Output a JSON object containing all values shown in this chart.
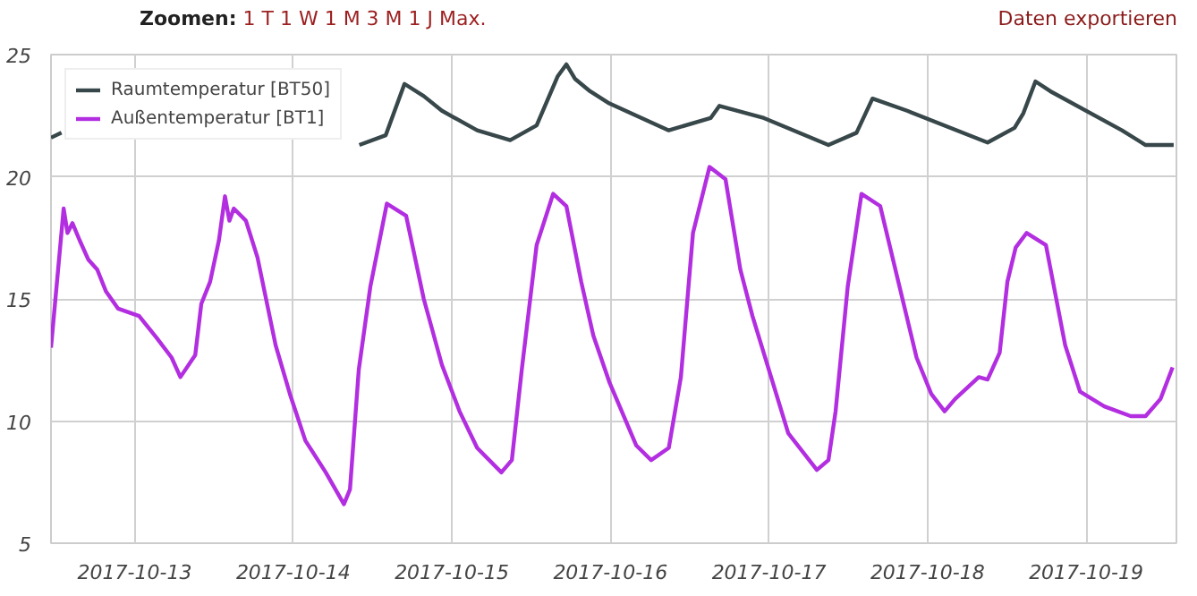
{
  "chart_data": {
    "type": "line",
    "annotations": [
      "Zoomen: 1 T 1 W 1 M 3 M 1 J Max.",
      "Daten exportieren"
    ],
    "xlim": [
      "2017-10-12T11:20",
      "2017-10-19T13:40"
    ],
    "xticks": [
      "2017-10-13",
      "2017-10-14",
      "2017-10-15",
      "2017-10-16",
      "2017-10-17",
      "2017-10-18",
      "2017-10-19"
    ],
    "ylim": [
      5,
      25
    ],
    "yticks": [
      5,
      10,
      15,
      20,
      25
    ],
    "grid": true,
    "legend": "top left",
    "marker": "none",
    "line_style": "solid",
    "series": [
      {
        "name": "Raumtemperatur [BT50]",
        "color": "#37474a",
        "x": [
          "2017-10-12T11:20",
          "2017-10-12T12:55",
          "2017-10-13T12:00",
          "2017-10-14T10:00",
          "2017-10-14T14:00",
          "2017-10-14T16:50",
          "2017-10-14T19:45",
          "2017-10-14T22:30",
          "2017-10-15T03:50",
          "2017-10-15T08:50",
          "2017-10-15T12:50",
          "2017-10-15T16:00",
          "2017-10-15T17:20",
          "2017-10-15T18:40",
          "2017-10-15T20:55",
          "2017-10-15T23:50",
          "2017-10-16T08:50",
          "2017-10-16T15:10",
          "2017-10-16T16:30",
          "2017-10-16T23:15",
          "2017-10-17T09:00",
          "2017-10-17T13:15",
          "2017-10-17T15:40",
          "2017-10-17T20:55",
          "2017-10-18T09:05",
          "2017-10-18T13:10",
          "2017-10-18T14:30",
          "2017-10-18T16:20",
          "2017-10-18T18:35",
          "2017-10-19T05:25",
          "2017-10-19T09:00",
          "2017-10-19T13:15"
        ],
        "values": [
          21.6,
          21.8,
          null,
          21.3,
          21.7,
          23.8,
          23.3,
          22.7,
          21.9,
          21.5,
          22.1,
          24.1,
          24.6,
          24.0,
          23.5,
          23.0,
          21.9,
          22.4,
          22.9,
          22.4,
          21.3,
          21.8,
          23.2,
          22.7,
          21.4,
          22.0,
          22.6,
          23.9,
          23.5,
          21.9,
          21.3,
          21.3
        ]
      },
      {
        "name": "Außentemperatur [BT1]",
        "color": "#b22ee0",
        "x": [
          "2017-10-12T11:20",
          "2017-10-12T13:15",
          "2017-10-12T13:50",
          "2017-10-12T14:35",
          "2017-10-12T15:40",
          "2017-10-12T17:00",
          "2017-10-12T18:20",
          "2017-10-12T19:40",
          "2017-10-12T21:30",
          "2017-10-13T00:40",
          "2017-10-13T03:20",
          "2017-10-13T05:35",
          "2017-10-13T06:55",
          "2017-10-13T09:10",
          "2017-10-13T10:05",
          "2017-10-13T11:25",
          "2017-10-13T12:45",
          "2017-10-13T13:40",
          "2017-10-13T14:20",
          "2017-10-13T15:00",
          "2017-10-13T16:50",
          "2017-10-13T18:35",
          "2017-10-13T21:20",
          "2017-10-13T23:30",
          "2017-10-14T01:50",
          "2017-10-14T04:55",
          "2017-10-14T07:40",
          "2017-10-14T08:35",
          "2017-10-14T09:55",
          "2017-10-14T11:40",
          "2017-10-14T14:10",
          "2017-10-14T17:05",
          "2017-10-14T19:45",
          "2017-10-14T22:30",
          "2017-10-15T01:10",
          "2017-10-15T03:50",
          "2017-10-15T07:30",
          "2017-10-15T09:05",
          "2017-10-15T10:35",
          "2017-10-15T12:50",
          "2017-10-15T15:20",
          "2017-10-15T17:20",
          "2017-10-15T19:35",
          "2017-10-15T21:25",
          "2017-10-15T23:50",
          "2017-10-16T03:55",
          "2017-10-16T06:10",
          "2017-10-16T08:50",
          "2017-10-16T10:40",
          "2017-10-16T12:30",
          "2017-10-16T15:00",
          "2017-10-16T17:25",
          "2017-10-16T19:40",
          "2017-10-16T21:30",
          "2017-10-17T02:55",
          "2017-10-17T07:15",
          "2017-10-17T09:00",
          "2017-10-17T10:05",
          "2017-10-17T11:55",
          "2017-10-17T14:00",
          "2017-10-17T16:50",
          "2017-10-17T19:35",
          "2017-10-17T22:20",
          "2017-10-18T00:35",
          "2017-10-18T02:35",
          "2017-10-18T04:10",
          "2017-10-18T07:45",
          "2017-10-18T09:05",
          "2017-10-18T10:55",
          "2017-10-18T12:05",
          "2017-10-18T13:20",
          "2017-10-18T15:00",
          "2017-10-18T17:55",
          "2017-10-18T20:50",
          "2017-10-18T23:05",
          "2017-10-19T02:45",
          "2017-10-19T06:45",
          "2017-10-19T09:00",
          "2017-10-19T11:15",
          "2017-10-19T13:05"
        ],
        "values": [
          13.0,
          18.7,
          17.7,
          18.1,
          17.4,
          16.6,
          16.2,
          15.3,
          14.6,
          14.3,
          13.4,
          12.6,
          11.8,
          12.7,
          14.8,
          15.7,
          17.4,
          19.2,
          18.2,
          18.7,
          18.2,
          16.7,
          13.1,
          11.1,
          9.2,
          7.9,
          6.6,
          7.2,
          12.1,
          15.5,
          18.9,
          18.4,
          15.0,
          12.3,
          10.4,
          8.9,
          7.9,
          8.4,
          12.1,
          17.2,
          19.3,
          18.8,
          15.7,
          13.5,
          11.6,
          9.0,
          8.4,
          8.9,
          11.8,
          17.7,
          20.4,
          19.9,
          16.2,
          14.3,
          9.5,
          8.0,
          8.4,
          10.4,
          15.5,
          19.3,
          18.8,
          15.7,
          12.6,
          11.1,
          10.4,
          10.9,
          11.8,
          11.7,
          12.8,
          15.7,
          17.1,
          17.7,
          17.2,
          13.1,
          11.2,
          10.6,
          10.2,
          10.2,
          10.9,
          12.2
        ]
      }
    ]
  }
}
